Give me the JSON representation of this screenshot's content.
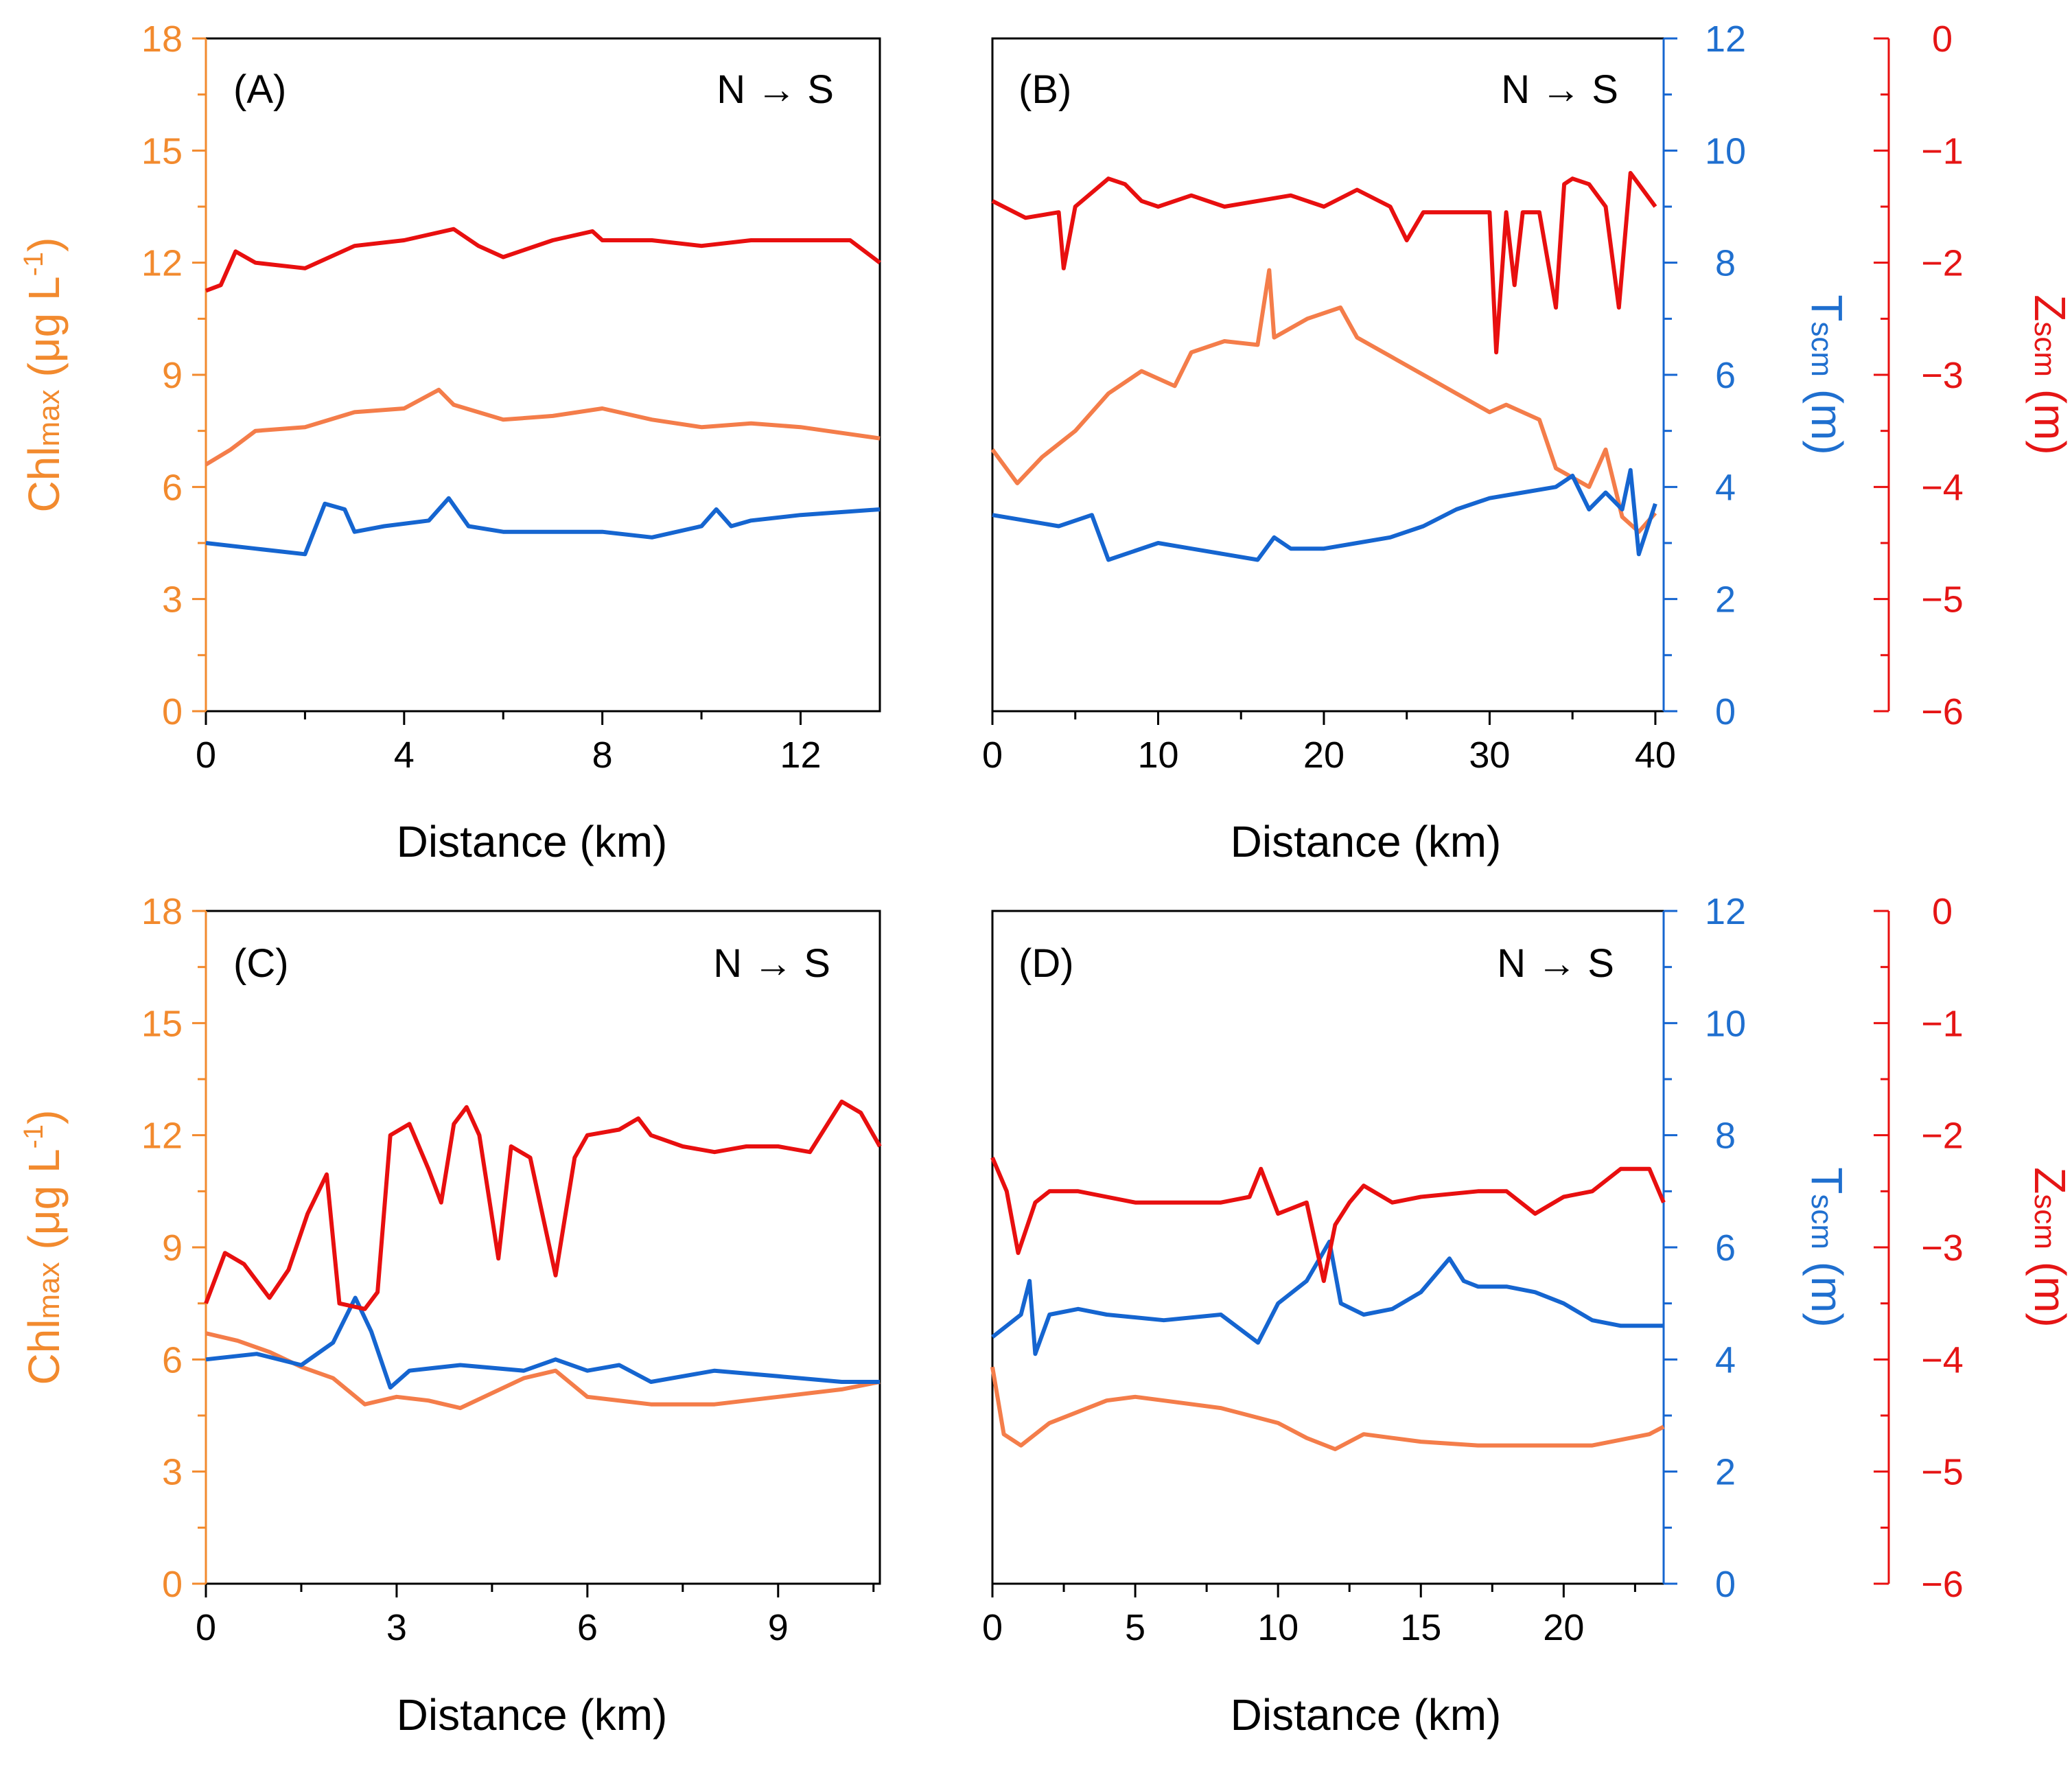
{
  "colors": {
    "chl": "#f28a2e",
    "chl_line": "#f47d4a",
    "tscm": "#1565d0",
    "zscm": "#e80f0f",
    "axis_black": "#000000"
  },
  "labels": {
    "xlabel": "Distance (km)",
    "chl_prefix": "Chl",
    "chl_sub": "max",
    "chl_unit": "(μg L",
    "chl_exp": "-1",
    "chl_close": ")",
    "t_prefix": "T",
    "t_sub": "scm",
    "t_unit": "(m)",
    "z_prefix": "Z",
    "z_sub": "scm",
    "z_unit": "(m)"
  },
  "chart_data": [
    {
      "id": "A",
      "panel_label": "(A)",
      "direction": "N → S",
      "type": "line",
      "xlabel": "Distance (km)",
      "xlim": [
        0,
        13.6
      ],
      "xticks": [
        0,
        4,
        8,
        12
      ],
      "ylim_chl": [
        0,
        18
      ],
      "yticks_chl": [
        0,
        3,
        6,
        9,
        12,
        15,
        18
      ],
      "series": [
        {
          "name": "Chlmax",
          "axis": "chl",
          "x": [
            0,
            0.5,
            1,
            2,
            3,
            4,
            4.7,
            5,
            6,
            7,
            8,
            9,
            10,
            11,
            12,
            13.6
          ],
          "values": [
            6.6,
            7.0,
            7.5,
            7.6,
            8.0,
            8.1,
            8.6,
            8.2,
            7.8,
            7.9,
            8.1,
            7.8,
            7.6,
            7.7,
            7.6,
            7.3
          ]
        },
        {
          "name": "Tscm",
          "axis": "t",
          "x": [
            0,
            1,
            2,
            2.4,
            2.8,
            3,
            3.6,
            4.5,
            4.9,
            5.3,
            6,
            7,
            8,
            9,
            10,
            10.3,
            10.6,
            11,
            12,
            13.6
          ],
          "values": [
            3.0,
            2.9,
            2.8,
            3.7,
            3.6,
            3.2,
            3.3,
            3.4,
            3.8,
            3.3,
            3.2,
            3.2,
            3.2,
            3.1,
            3.3,
            3.6,
            3.3,
            3.4,
            3.5,
            3.6
          ]
        },
        {
          "name": "Zscm",
          "axis": "z",
          "x": [
            0,
            0.3,
            0.6,
            1,
            2,
            3,
            4,
            5,
            5.5,
            6,
            7,
            7.8,
            8,
            9,
            10,
            11,
            12,
            13,
            13.6
          ],
          "values": [
            -2.25,
            -2.2,
            -1.9,
            -2.0,
            -2.05,
            -1.85,
            -1.8,
            -1.7,
            -1.85,
            -1.95,
            -1.8,
            -1.72,
            -1.8,
            -1.8,
            -1.85,
            -1.8,
            -1.8,
            -1.8,
            -2.0
          ]
        }
      ]
    },
    {
      "id": "B",
      "panel_label": "(B)",
      "direction": "N → S",
      "type": "line",
      "xlabel": "Distance (km)",
      "xlim": [
        0,
        40.5
      ],
      "xticks": [
        0,
        10,
        20,
        30,
        40
      ],
      "ylim_t": [
        0,
        12
      ],
      "yticks_t": [
        0,
        2,
        4,
        6,
        8,
        10,
        12
      ],
      "ylim_z": [
        -6,
        0
      ],
      "yticks_z": [
        0,
        -1,
        -2,
        -3,
        -4,
        -5,
        -6
      ],
      "series": [
        {
          "name": "Chlmax",
          "axis": "chl",
          "x": [
            0,
            1.5,
            3,
            5,
            7,
            9,
            11,
            12,
            14,
            16,
            16.7,
            17,
            19,
            21,
            22,
            24,
            26,
            28,
            30,
            31,
            33,
            34,
            36,
            37,
            38,
            39,
            40
          ],
          "values": [
            7.0,
            6.1,
            6.8,
            7.5,
            8.5,
            9.1,
            8.7,
            9.6,
            9.9,
            9.8,
            11.8,
            10.0,
            10.5,
            10.8,
            10.0,
            9.5,
            9.0,
            8.5,
            8.0,
            8.2,
            7.8,
            6.5,
            6.0,
            7.0,
            5.2,
            4.8,
            5.3
          ]
        },
        {
          "name": "Tscm",
          "axis": "t",
          "x": [
            0,
            2,
            4,
            6,
            7,
            8,
            10,
            12,
            14,
            16,
            17,
            18,
            20,
            22,
            24,
            26,
            28,
            30,
            32,
            34,
            35,
            36,
            37,
            38,
            38.5,
            39,
            40
          ],
          "values": [
            3.5,
            3.4,
            3.3,
            3.5,
            2.7,
            2.8,
            3.0,
            2.9,
            2.8,
            2.7,
            3.1,
            2.9,
            2.9,
            3.0,
            3.1,
            3.3,
            3.6,
            3.8,
            3.9,
            4.0,
            4.2,
            3.6,
            3.9,
            3.6,
            4.3,
            2.8,
            3.7
          ]
        },
        {
          "name": "Zscm",
          "axis": "z",
          "x": [
            0,
            2,
            4,
            4.3,
            5,
            7,
            8,
            9,
            10,
            12,
            14,
            16,
            18,
            20,
            22,
            24,
            25,
            26,
            28,
            30,
            30.4,
            31,
            31.5,
            32,
            33,
            34,
            34.5,
            35,
            36,
            37,
            37.8,
            38.5,
            39,
            40
          ],
          "values": [
            -1.45,
            -1.6,
            -1.55,
            -2.05,
            -1.5,
            -1.25,
            -1.3,
            -1.45,
            -1.5,
            -1.4,
            -1.5,
            -1.45,
            -1.4,
            -1.5,
            -1.35,
            -1.5,
            -1.8,
            -1.55,
            -1.55,
            -1.55,
            -2.8,
            -1.55,
            -2.2,
            -1.55,
            -1.55,
            -2.4,
            -1.3,
            -1.25,
            -1.3,
            -1.5,
            -2.4,
            -1.2,
            -1.3,
            -1.5
          ]
        }
      ]
    },
    {
      "id": "C",
      "panel_label": "(C)",
      "direction": "N → S",
      "type": "line",
      "xlabel": "Distance (km)",
      "xlim": [
        0,
        10.6
      ],
      "xticks": [
        0,
        3,
        6,
        9
      ],
      "ylim_chl": [
        0,
        18
      ],
      "yticks_chl": [
        0,
        3,
        6,
        9,
        12,
        15,
        18
      ],
      "series": [
        {
          "name": "Chlmax",
          "axis": "chl",
          "x": [
            0,
            0.5,
            1,
            1.5,
            2,
            2.5,
            3,
            3.5,
            4,
            5,
            5.5,
            6,
            7,
            8,
            9,
            10,
            10.6
          ],
          "values": [
            6.7,
            6.5,
            6.2,
            5.8,
            5.5,
            4.8,
            5.0,
            4.9,
            4.7,
            5.5,
            5.7,
            5.0,
            4.8,
            4.8,
            5.0,
            5.2,
            5.4
          ]
        },
        {
          "name": "Tscm",
          "axis": "t",
          "x": [
            0,
            0.8,
            1.5,
            2,
            2.35,
            2.6,
            2.9,
            3.2,
            4,
            5,
            5.5,
            6,
            6.5,
            7,
            8,
            9,
            10,
            10.6
          ],
          "values": [
            4.0,
            4.1,
            3.9,
            4.3,
            5.1,
            4.5,
            3.5,
            3.8,
            3.9,
            3.8,
            4.0,
            3.8,
            3.9,
            3.6,
            3.8,
            3.7,
            3.6,
            3.6
          ]
        },
        {
          "name": "Zscm",
          "axis": "z",
          "x": [
            0,
            0.3,
            0.6,
            1,
            1.3,
            1.6,
            1.9,
            2.1,
            2.5,
            2.7,
            2.9,
            3.2,
            3.5,
            3.7,
            3.9,
            4.1,
            4.3,
            4.6,
            4.8,
            5.1,
            5.5,
            5.8,
            6,
            6.5,
            6.8,
            7,
            7.5,
            8,
            8.5,
            9,
            9.5,
            10,
            10.3,
            10.6
          ],
          "values": [
            -3.5,
            -3.05,
            -3.15,
            -3.45,
            -3.2,
            -2.7,
            -2.35,
            -3.5,
            -3.55,
            -3.4,
            -2.0,
            -1.9,
            -2.3,
            -2.6,
            -1.9,
            -1.75,
            -2.0,
            -3.1,
            -2.1,
            -2.2,
            -3.25,
            -2.2,
            -2.0,
            -1.95,
            -1.85,
            -2.0,
            -2.1,
            -2.15,
            -2.1,
            -2.1,
            -2.15,
            -1.7,
            -1.8,
            -2.1
          ]
        }
      ]
    },
    {
      "id": "D",
      "panel_label": "(D)",
      "direction": "N → S",
      "type": "line",
      "xlabel": "Distance (km)",
      "xlim": [
        0,
        23.5
      ],
      "xticks": [
        0,
        5,
        10,
        15,
        20
      ],
      "ylim_t": [
        0,
        12
      ],
      "yticks_t": [
        0,
        2,
        4,
        6,
        8,
        10,
        12
      ],
      "ylim_z": [
        -6,
        0
      ],
      "yticks_z": [
        0,
        -1,
        -2,
        -3,
        -4,
        -5,
        -6
      ],
      "series": [
        {
          "name": "Chlmax",
          "axis": "chl",
          "x": [
            0,
            0.4,
            1,
            2,
            3,
            4,
            5,
            6,
            8,
            10,
            11,
            12,
            13,
            14,
            15,
            17,
            19,
            21,
            23,
            23.5
          ],
          "values": [
            5.8,
            4.0,
            3.7,
            4.3,
            4.6,
            4.9,
            5.0,
            4.9,
            4.7,
            4.3,
            3.9,
            3.6,
            4.0,
            3.9,
            3.8,
            3.7,
            3.7,
            3.7,
            4.0,
            4.2
          ]
        },
        {
          "name": "Tscm",
          "axis": "t",
          "x": [
            0,
            1,
            1.3,
            1.5,
            2,
            3,
            4,
            6,
            8,
            9.3,
            10,
            11,
            11.8,
            12.2,
            13,
            14,
            15,
            16,
            16.5,
            17,
            18,
            19,
            20,
            21,
            22,
            23.5
          ],
          "values": [
            4.4,
            4.8,
            5.4,
            4.1,
            4.8,
            4.9,
            4.8,
            4.7,
            4.8,
            4.3,
            5.0,
            5.4,
            6.1,
            5.0,
            4.8,
            4.9,
            5.2,
            5.8,
            5.4,
            5.3,
            5.3,
            5.2,
            5.0,
            4.7,
            4.6,
            4.6
          ]
        },
        {
          "name": "Zscm",
          "axis": "z",
          "x": [
            0,
            0.5,
            0.9,
            1.5,
            2,
            3,
            5,
            6,
            8,
            9,
            9.4,
            10,
            11,
            11.6,
            12,
            12.5,
            13,
            14,
            15,
            17,
            18,
            19,
            20,
            21,
            22,
            23,
            23.5
          ],
          "values": [
            -2.2,
            -2.5,
            -3.05,
            -2.6,
            -2.5,
            -2.5,
            -2.6,
            -2.6,
            -2.6,
            -2.55,
            -2.3,
            -2.7,
            -2.6,
            -3.3,
            -2.8,
            -2.6,
            -2.45,
            -2.6,
            -2.55,
            -2.5,
            -2.5,
            -2.7,
            -2.55,
            -2.5,
            -2.3,
            -2.3,
            -2.6
          ]
        }
      ]
    }
  ]
}
